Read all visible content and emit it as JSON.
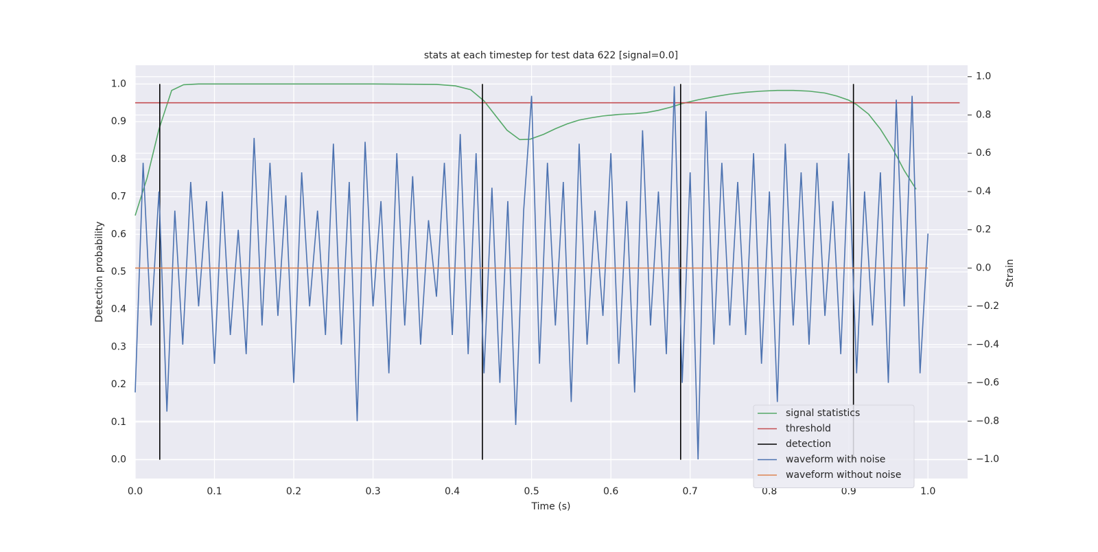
{
  "chart_data": {
    "type": "dual-axis-line",
    "title": "stats at each timestep for test data 622 [signal=0.0]",
    "xlabel": "Time (s)",
    "ylabel": "Detection probability",
    "y2label": "Strain",
    "xlim": [
      0,
      1.05
    ],
    "ylim": [
      -0.05,
      1.05
    ],
    "y2lim": [
      -1.1,
      1.06
    ],
    "xticks": [
      {
        "value": 0,
        "label": "0.0"
      },
      0.1,
      0.2,
      0.3,
      0.4,
      0.5,
      0.6,
      0.7,
      0.8,
      0.9,
      {
        "value": 1,
        "label": "1.0"
      }
    ],
    "yticks": [
      {
        "value": 0,
        "label": "0.0"
      },
      0.1,
      0.2,
      0.3,
      0.4,
      0.5,
      0.6,
      0.7,
      0.8,
      0.9,
      {
        "value": 1,
        "label": "1.0"
      }
    ],
    "y2ticks": [
      {
        "value": -1,
        "label": "−1.0"
      },
      {
        "value": -0.8,
        "label": "−0.8"
      },
      {
        "value": -0.6,
        "label": "−0.6"
      },
      {
        "value": -0.4,
        "label": "−0.4"
      },
      {
        "value": -0.2,
        "label": "−0.2"
      },
      {
        "value": 0,
        "label": "0.0"
      },
      0.2,
      0.4,
      0.6,
      0.8,
      {
        "value": 1,
        "label": "1.0"
      }
    ],
    "grid": true,
    "legend": "lower right",
    "series": [
      {
        "name": "signal statistics",
        "color": "#55a868",
        "kind": "line",
        "axis": "y",
        "x": [
          0,
          0.015,
          0.03,
          0.046,
          0.061,
          0.08,
          0.2,
          0.3,
          0.38,
          0.404,
          0.423,
          0.44,
          0.469,
          0.485,
          0.498,
          0.515,
          0.53,
          0.545,
          0.56,
          0.575,
          0.59,
          0.61,
          0.63,
          0.645,
          0.66,
          0.675,
          0.69,
          0.71,
          0.73,
          0.75,
          0.77,
          0.79,
          0.81,
          0.83,
          0.85,
          0.87,
          0.885,
          0.9,
          0.91,
          0.925,
          0.94,
          0.955,
          0.97,
          0.985
        ],
        "values": [
          0.65,
          0.75,
          0.88,
          0.983,
          0.998,
          1.0,
          1.0,
          1.0,
          0.999,
          0.995,
          0.985,
          0.955,
          0.877,
          0.852,
          0.853,
          0.866,
          0.881,
          0.894,
          0.904,
          0.91,
          0.915,
          0.919,
          0.921,
          0.924,
          0.93,
          0.938,
          0.948,
          0.958,
          0.966,
          0.973,
          0.978,
          0.981,
          0.983,
          0.983,
          0.981,
          0.976,
          0.968,
          0.957,
          0.945,
          0.92,
          0.88,
          0.83,
          0.77,
          0.72
        ]
      },
      {
        "name": "threshold",
        "color": "#c44e52",
        "kind": "line",
        "axis": "y",
        "x": [
          0,
          1.04
        ],
        "values": [
          0.95,
          0.95
        ]
      },
      {
        "name": "detection",
        "color": "#000000",
        "kind": "vlines",
        "axis": "y",
        "x": [
          0.031,
          0.438,
          0.688,
          0.906
        ],
        "ymin": 0,
        "ymax": 1
      },
      {
        "name": "waveform with noise",
        "color": "#4c72b0",
        "kind": "line",
        "axis": "y2",
        "x": [
          0,
          0.01,
          0.02,
          0.03,
          0.04,
          0.05,
          0.06,
          0.07,
          0.08,
          0.09,
          0.1,
          0.11,
          0.12,
          0.13,
          0.14,
          0.15,
          0.16,
          0.17,
          0.18,
          0.19,
          0.2,
          0.21,
          0.22,
          0.23,
          0.24,
          0.25,
          0.26,
          0.27,
          0.28,
          0.29,
          0.3,
          0.31,
          0.32,
          0.33,
          0.34,
          0.35,
          0.36,
          0.37,
          0.38,
          0.39,
          0.4,
          0.41,
          0.42,
          0.43,
          0.44,
          0.45,
          0.46,
          0.47,
          0.48,
          0.49,
          0.5,
          0.51,
          0.52,
          0.53,
          0.54,
          0.55,
          0.56,
          0.57,
          0.58,
          0.59,
          0.6,
          0.61,
          0.62,
          0.63,
          0.64,
          0.65,
          0.66,
          0.67,
          0.68,
          0.69,
          0.7,
          0.71,
          0.72,
          0.73,
          0.74,
          0.75,
          0.76,
          0.77,
          0.78,
          0.79,
          0.8,
          0.81,
          0.82,
          0.83,
          0.84,
          0.85,
          0.86,
          0.87,
          0.88,
          0.89,
          0.9,
          0.91,
          0.92,
          0.93,
          0.94,
          0.95,
          0.96,
          0.97,
          0.98,
          0.99,
          1.0
        ],
        "values": [
          -0.65,
          0.55,
          -0.3,
          0.4,
          -0.75,
          0.3,
          -0.4,
          0.45,
          -0.2,
          0.35,
          -0.5,
          0.4,
          -0.35,
          0.2,
          -0.45,
          0.68,
          -0.3,
          0.55,
          -0.25,
          0.38,
          -0.6,
          0.5,
          -0.2,
          0.3,
          -0.35,
          0.65,
          -0.4,
          0.45,
          -0.8,
          0.66,
          -0.2,
          0.35,
          -0.55,
          0.6,
          -0.3,
          0.48,
          -0.4,
          0.25,
          -0.15,
          0.55,
          -0.35,
          0.7,
          -0.45,
          0.6,
          -0.55,
          0.42,
          -0.6,
          0.35,
          -0.82,
          0.3,
          0.9,
          -0.5,
          0.55,
          -0.3,
          0.45,
          -0.7,
          0.65,
          -0.4,
          0.3,
          -0.25,
          0.6,
          -0.5,
          0.35,
          -0.65,
          0.72,
          -0.3,
          0.4,
          -0.45,
          0.95,
          -0.6,
          0.5,
          -1.0,
          0.82,
          -0.4,
          0.55,
          -0.3,
          0.45,
          -0.35,
          0.6,
          -0.5,
          0.4,
          -0.7,
          0.65,
          -0.3,
          0.5,
          -0.4,
          0.55,
          -0.25,
          0.35,
          -0.45,
          0.6,
          -0.55,
          0.4,
          -0.3,
          0.5,
          -0.6,
          0.88,
          -0.2,
          0.9,
          -0.55,
          0.18
        ]
      },
      {
        "name": "waveform without noise",
        "color": "#dd8452",
        "kind": "line",
        "axis": "y2",
        "x": [
          0,
          1.0
        ],
        "values": [
          0,
          0
        ]
      }
    ]
  }
}
